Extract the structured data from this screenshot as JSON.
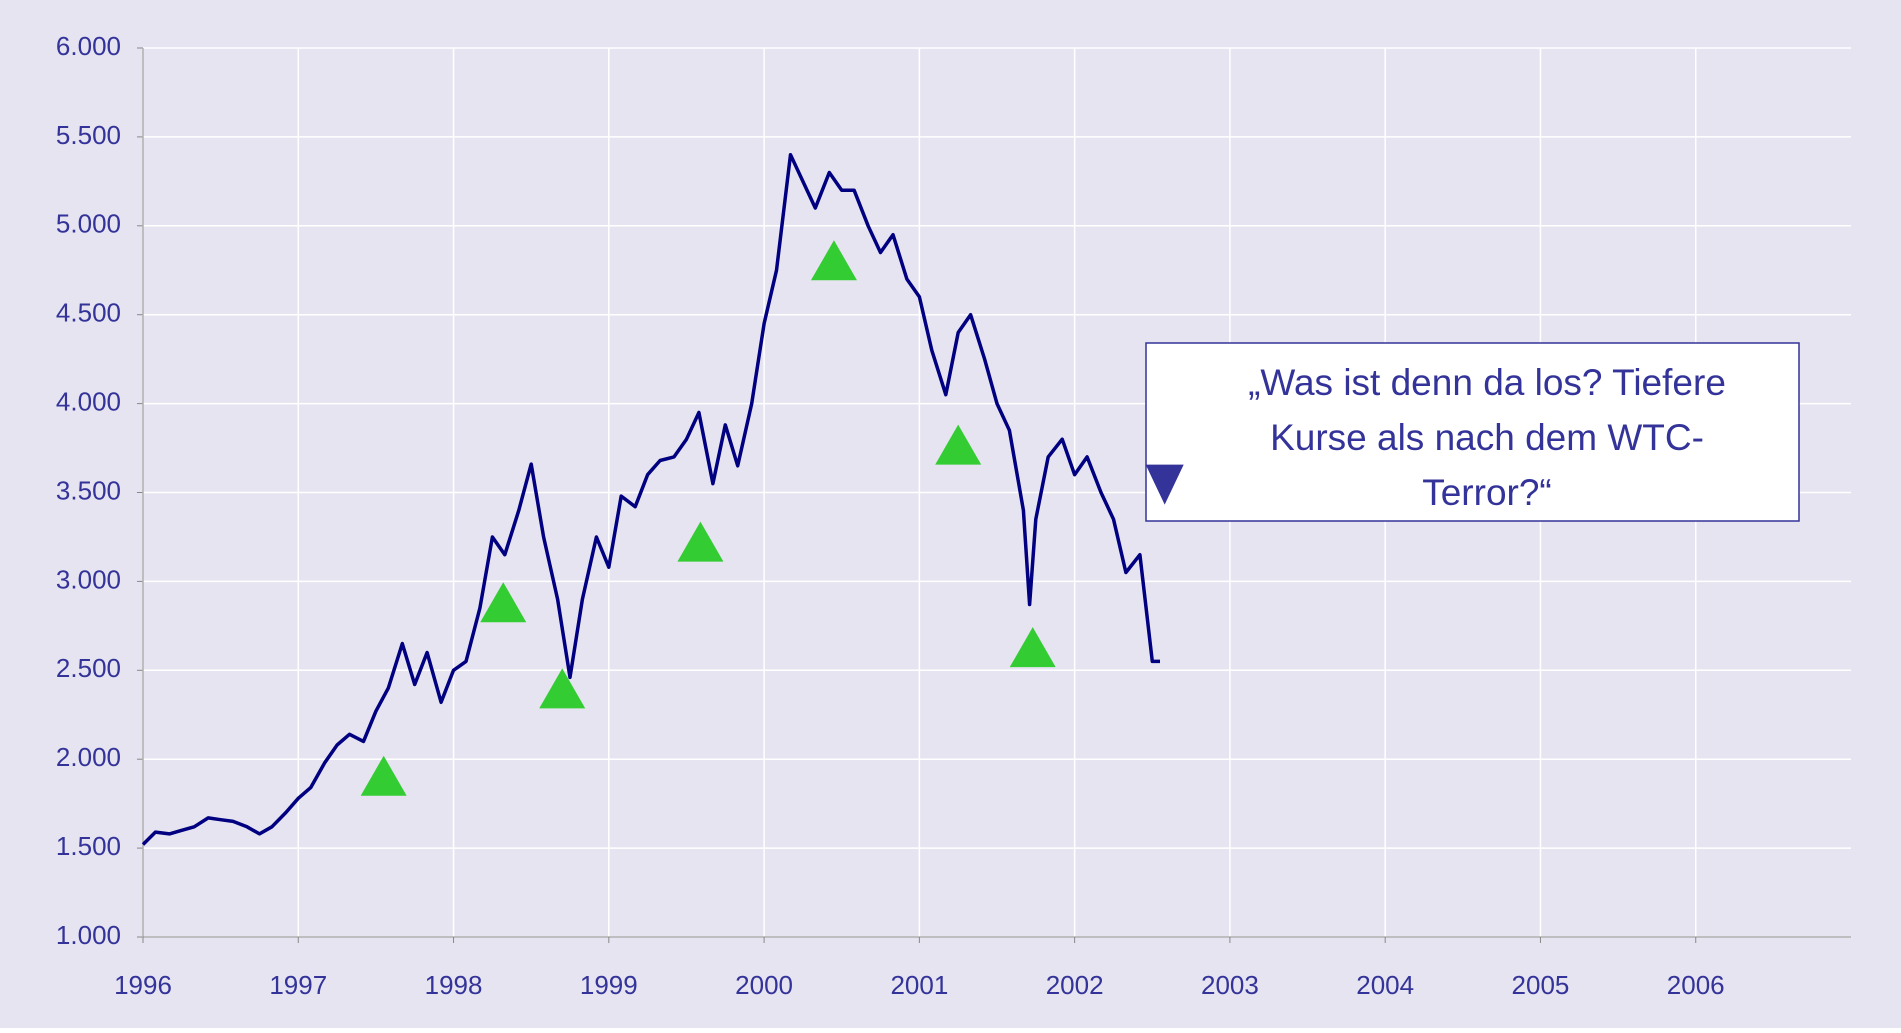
{
  "chart_data": {
    "type": "line",
    "background": "#e6e4f0",
    "grid": true,
    "xlim": [
      1996,
      2007
    ],
    "xticks": [
      1996,
      1997,
      1998,
      1999,
      2000,
      2001,
      2002,
      2003,
      2004,
      2005,
      2006
    ],
    "ylim": [
      1000,
      6000
    ],
    "yticks": [
      {
        "value": 1000,
        "label": "1.000"
      },
      {
        "value": 1500,
        "label": "1.500"
      },
      {
        "value": 2000,
        "label": "2.000"
      },
      {
        "value": 2500,
        "label": "2.500"
      },
      {
        "value": 3000,
        "label": "3.000"
      },
      {
        "value": 3500,
        "label": "3.500"
      },
      {
        "value": 4000,
        "label": "4.000"
      },
      {
        "value": 4500,
        "label": "4.500"
      },
      {
        "value": 5000,
        "label": "5.000"
      },
      {
        "value": 5500,
        "label": "5.500"
      },
      {
        "value": 6000,
        "label": "6.000"
      }
    ],
    "series": [
      {
        "color": "#000080",
        "x": [
          1996.0,
          1996.08,
          1996.17,
          1996.25,
          1996.33,
          1996.42,
          1996.5,
          1996.58,
          1996.67,
          1996.75,
          1996.83,
          1996.92,
          1997.0,
          1997.08,
          1997.17,
          1997.25,
          1997.33,
          1997.42,
          1997.5,
          1997.58,
          1997.67,
          1997.75,
          1997.83,
          1997.92,
          1998.0,
          1998.08,
          1998.17,
          1998.25,
          1998.33,
          1998.42,
          1998.5,
          1998.58,
          1998.67,
          1998.75,
          1998.83,
          1998.92,
          1999.0,
          1999.08,
          1999.17,
          1999.25,
          1999.33,
          1999.42,
          1999.5,
          1999.58,
          1999.67,
          1999.75,
          1999.83,
          1999.92,
          2000.0,
          2000.08,
          2000.17,
          2000.25,
          2000.33,
          2000.42,
          2000.5,
          2000.58,
          2000.67,
          2000.75,
          2000.83,
          2000.92,
          2001.0,
          2001.08,
          2001.17,
          2001.25,
          2001.33,
          2001.42,
          2001.5,
          2001.58,
          2001.67,
          2001.71,
          2001.75,
          2001.83,
          2001.92,
          2002.0,
          2002.08,
          2002.17,
          2002.25,
          2002.33,
          2002.42,
          2002.5,
          2002.55
        ],
        "values": [
          1520,
          1590,
          1580,
          1600,
          1620,
          1670,
          1660,
          1650,
          1620,
          1580,
          1620,
          1700,
          1780,
          1840,
          1980,
          2080,
          2140,
          2100,
          2270,
          2400,
          2650,
          2420,
          2600,
          2320,
          2500,
          2550,
          2850,
          3250,
          3150,
          3400,
          3660,
          3250,
          2900,
          2460,
          2900,
          3250,
          3080,
          3480,
          3420,
          3600,
          3680,
          3700,
          3800,
          3950,
          3550,
          3880,
          3650,
          4000,
          4450,
          4750,
          5400,
          5250,
          5100,
          5300,
          5200,
          5200,
          5000,
          4850,
          4950,
          4700,
          4600,
          4300,
          4050,
          4400,
          4500,
          4250,
          4000,
          3850,
          3400,
          2870,
          3350,
          3700,
          3800,
          3600,
          3700,
          3500,
          3350,
          3050,
          3150,
          2550,
          2550
        ]
      }
    ],
    "markers": [
      {
        "shape": "up",
        "color": "#33cc33",
        "x": [
          1997.55,
          1998.32,
          1998.7,
          1999.59,
          2000.45,
          2001.25,
          2001.73
        ],
        "values": [
          1907,
          2883,
          2398,
          3224,
          4806,
          3769,
          2630
        ]
      },
      {
        "shape": "down",
        "color": "#333399",
        "x": [
          2002.58
        ],
        "values": [
          3544
        ]
      }
    ],
    "annotation": [
      "„Was ist denn da los? Tiefere",
      "Kurse als nach dem WTC-",
      "Terror?“"
    ]
  }
}
